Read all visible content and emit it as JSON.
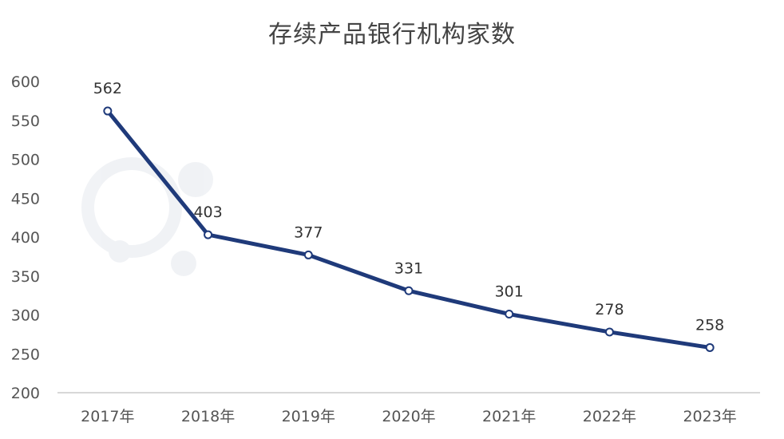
{
  "chart_data": {
    "type": "line",
    "title": "存续产品银行机构家数",
    "categories": [
      "2017年",
      "2018年",
      "2019年",
      "2020年",
      "2021年",
      "2022年",
      "2023年"
    ],
    "series": [
      {
        "name": "存续产品银行机构家数",
        "values": [
          562,
          403,
          377,
          331,
          301,
          278,
          258
        ]
      }
    ],
    "ylim": [
      200,
      600
    ],
    "yticks": [
      200,
      250,
      300,
      350,
      400,
      450,
      500,
      550,
      600
    ],
    "xlabel": "",
    "ylabel": "",
    "grid": false,
    "line_color": "#1f3a7a"
  }
}
